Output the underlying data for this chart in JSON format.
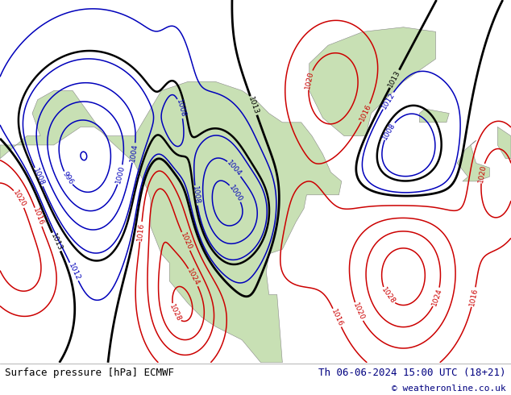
{
  "title_left": "Surface pressure [hPa] ECMWF",
  "title_right": "Th 06-06-2024 15:00 UTC (18+21)",
  "copyright": "© weatheronline.co.uk",
  "bg_color": "#c8c8c8",
  "land_color": "#c8e0b4",
  "ocean_color": "#d8e8f0",
  "sea_color": "#dce8f0",
  "contour_blue": "#0000bb",
  "contour_red": "#cc0000",
  "contour_black": "#000000",
  "footer_bg": "#ffffff",
  "footer_text_dark": "#000080",
  "footer_text_black": "#000000",
  "fig_width": 6.34,
  "fig_height": 4.9,
  "dpi": 100,
  "map_bg": "#d2d2d2",
  "font_size_footer": 9,
  "font_size_contour": 7
}
